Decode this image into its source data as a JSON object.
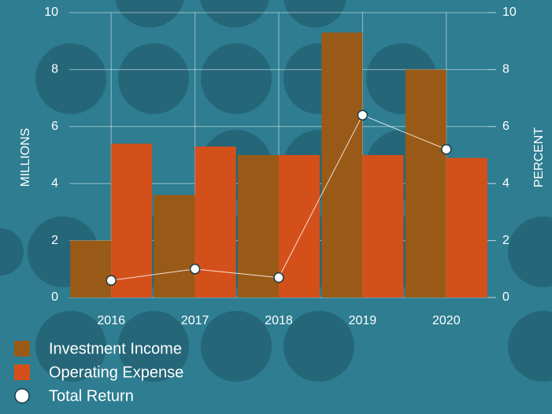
{
  "chart_data": {
    "type": "bar",
    "categories": [
      "2016",
      "2017",
      "2018",
      "2019",
      "2020"
    ],
    "series": [
      {
        "name": "Investment Income",
        "color": "#9a5a17",
        "values": [
          2.0,
          3.6,
          5.0,
          9.3,
          8.0
        ]
      },
      {
        "name": "Operating Expense",
        "color": "#d4501a",
        "values": [
          5.4,
          5.3,
          5.0,
          5.0,
          4.9
        ]
      },
      {
        "name": "Total Return",
        "type": "line",
        "axis": "y2",
        "color": "#ffffff",
        "values": [
          0.6,
          1.0,
          0.7,
          6.4,
          5.2
        ]
      }
    ],
    "ylabel": "MILLIONS",
    "y2label": "PERCENT",
    "ylim": [
      0,
      10
    ],
    "yticks": [
      0,
      2,
      4,
      6,
      8,
      10
    ],
    "y2lim": [
      0,
      10
    ],
    "y2ticks": [
      0,
      2,
      4,
      6,
      8,
      10
    ],
    "grid": true
  }
}
